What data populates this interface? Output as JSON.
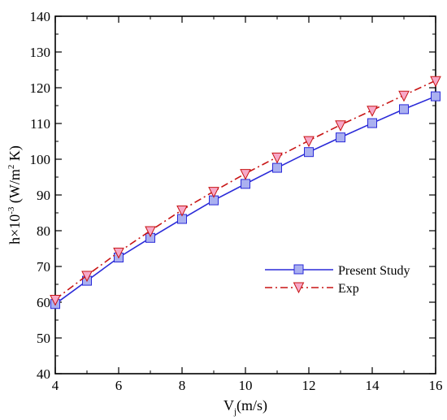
{
  "chart_data": {
    "type": "line",
    "title": "",
    "xlabel": "V_j(m/s)",
    "xlabel_parts": {
      "base": "V",
      "sub": "j",
      "rest": "(m/s)"
    },
    "ylabel": "h×10^-3 (W/m^2 K)",
    "ylabel_parts": {
      "a": "h×10",
      "sup1": "-3",
      "b": " (W/m",
      "sup2": "2",
      "c": " K)"
    },
    "xlim": [
      4,
      16
    ],
    "ylim": [
      40,
      140
    ],
    "xticks": [
      4,
      6,
      8,
      10,
      12,
      14,
      16
    ],
    "yticks": [
      40,
      50,
      60,
      70,
      80,
      90,
      100,
      110,
      120,
      130,
      140
    ],
    "grid": false,
    "legend_position": "lower-right",
    "series": [
      {
        "name": "Present Study",
        "color": "#2a2ad8",
        "marker": "square",
        "marker_fill": "#aab0f0",
        "line_style": "solid",
        "x": [
          4,
          5,
          6,
          7,
          8,
          9,
          10,
          11,
          12,
          13,
          14,
          15,
          16
        ],
        "y": [
          59.5,
          66,
          72.5,
          78,
          83.3,
          88.5,
          93.1,
          97.6,
          102,
          106.1,
          110.1,
          114,
          117.6
        ]
      },
      {
        "name": "Exp",
        "color": "#c81414",
        "marker": "triangle-down",
        "marker_fill": "#f7a8c8",
        "line_style": "dash-dot",
        "x": [
          4,
          5,
          6,
          7,
          8,
          9,
          10,
          11,
          12,
          13,
          14,
          15,
          16
        ],
        "y": [
          60.8,
          67.5,
          74,
          80,
          85.8,
          91,
          96,
          100.6,
          105.2,
          109.6,
          113.7,
          117.9,
          122
        ]
      }
    ]
  }
}
